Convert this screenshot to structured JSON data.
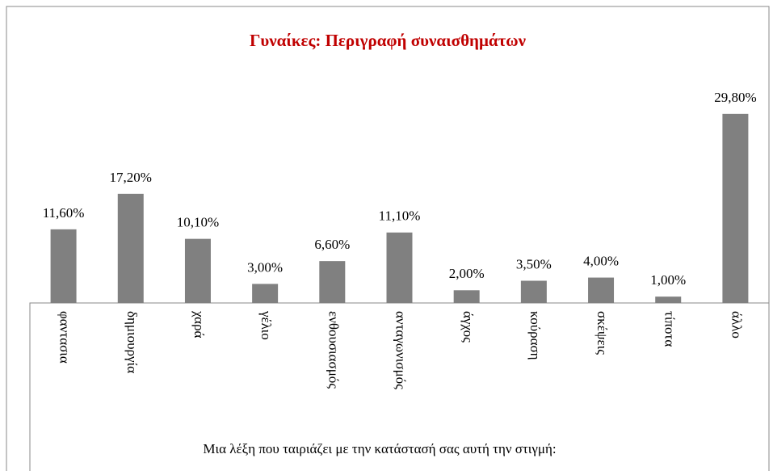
{
  "chart_data": {
    "type": "bar",
    "title": "Γυναίκες: Περιγραφή συναισθημάτων",
    "x_label": "Μια λέξη που ταιριάζει με την κατάστασή σας αυτή την στιγμή:",
    "categories": [
      "φαντασια",
      "δημιουργία",
      "χαρά",
      "γέλιο",
      "ενθουσιασμός",
      "ανταγωνισμός",
      "άγχος",
      "κούραση",
      "σκέψεις",
      "τίποτα",
      "άλλο"
    ],
    "values": [
      11.6,
      17.2,
      10.1,
      3.0,
      6.6,
      11.1,
      2.0,
      3.5,
      4.0,
      1.0,
      29.8
    ],
    "value_labels": [
      "11,60%",
      "17,20%",
      "10,10%",
      "3,00%",
      "6,60%",
      "11,10%",
      "2,00%",
      "3,50%",
      "4,00%",
      "1,00%",
      "29,80%"
    ],
    "color": "#808080",
    "title_color": "#c00000",
    "ylim": [
      0,
      35
    ]
  }
}
